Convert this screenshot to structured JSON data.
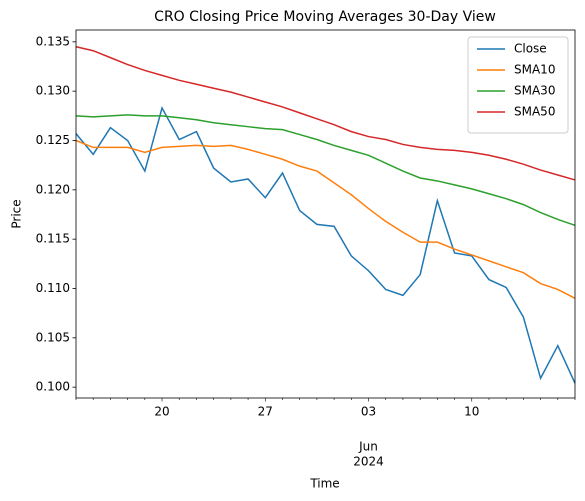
{
  "chart_data": {
    "type": "line",
    "title": "CRO Closing Price Moving Averages 30-Day View",
    "xlabel": "Time",
    "ylabel": "Price",
    "categories": [
      null,
      null,
      null,
      null,
      null,
      "20",
      null,
      null,
      null,
      null,
      null,
      "27",
      null,
      null,
      null,
      null,
      null,
      "03",
      null,
      null,
      null,
      null,
      null,
      "10",
      null,
      null,
      null,
      null,
      null,
      null
    ],
    "x_secondary_label": {
      "index": 17,
      "lines": [
        "Jun",
        "2024"
      ]
    },
    "series": [
      {
        "name": "Close",
        "color": "#1f77b4",
        "values": [
          0.1257,
          0.1236,
          0.1263,
          0.125,
          0.1219,
          0.1283,
          0.1251,
          0.1259,
          0.1222,
          0.1208,
          0.1211,
          0.1192,
          0.1217,
          0.1179,
          0.1165,
          0.1163,
          0.1133,
          0.1118,
          0.1099,
          0.1093,
          0.1114,
          0.1189,
          0.1136,
          0.1133,
          0.1109,
          0.1101,
          0.1071,
          0.1009,
          0.1042,
          0.1004
        ]
      },
      {
        "name": "SMA10",
        "color": "#ff7f0e",
        "values": [
          0.125,
          0.1243,
          0.1243,
          0.1243,
          0.1238,
          0.1243,
          0.1244,
          0.1245,
          0.1244,
          0.1245,
          0.1241,
          0.1236,
          0.1231,
          0.1224,
          0.1219,
          0.1207,
          0.1195,
          0.1181,
          0.1168,
          0.1157,
          0.1147,
          0.1147,
          0.114,
          0.1134,
          0.1128,
          0.1122,
          0.1116,
          0.1105,
          0.1099,
          0.109
        ]
      },
      {
        "name": "SMA30",
        "color": "#2ca02c",
        "values": [
          0.1275,
          0.1274,
          0.1275,
          0.1276,
          0.1275,
          0.1275,
          0.1273,
          0.1271,
          0.1268,
          0.1266,
          0.1264,
          0.1262,
          0.1261,
          0.1256,
          0.1251,
          0.1245,
          0.124,
          0.1235,
          0.1227,
          0.1219,
          0.1212,
          0.1209,
          0.1205,
          0.1201,
          0.1196,
          0.1191,
          0.1185,
          0.1177,
          0.117,
          0.1164
        ]
      },
      {
        "name": "SMA50",
        "color": "#d62728",
        "values": [
          0.1345,
          0.1341,
          0.1334,
          0.1327,
          0.1321,
          0.1316,
          0.1311,
          0.1307,
          0.1303,
          0.1299,
          0.1294,
          0.1289,
          0.1284,
          0.1278,
          0.1272,
          0.1266,
          0.1259,
          0.1254,
          0.1251,
          0.1246,
          0.1243,
          0.1241,
          0.124,
          0.1238,
          0.1235,
          0.1231,
          0.1226,
          0.122,
          0.1215,
          0.121
        ]
      }
    ],
    "ylim": [
      0.0989,
      0.1362
    ],
    "yticks": [
      {
        "value": 0.1,
        "label": "0.100"
      },
      {
        "value": 0.105,
        "label": "0.105"
      },
      {
        "value": 0.11,
        "label": "0.110"
      },
      {
        "value": 0.115,
        "label": "0.115"
      },
      {
        "value": 0.12,
        "label": "0.120"
      },
      {
        "value": 0.125,
        "label": "0.125"
      },
      {
        "value": 0.13,
        "label": "0.130"
      },
      {
        "value": 0.135,
        "label": "0.135"
      }
    ],
    "grid": false,
    "legend": "upper right"
  }
}
